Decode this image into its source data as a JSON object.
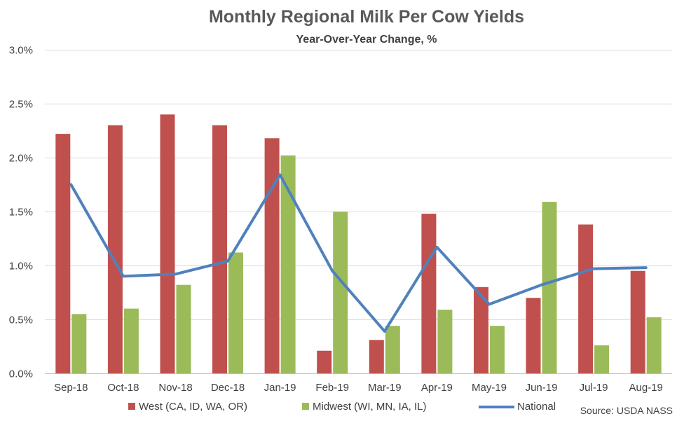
{
  "chart_data": {
    "type": "bar",
    "title": "Monthly Regional Milk Per Cow Yields",
    "subtitle": "Year-Over-Year Change, %",
    "categories": [
      "Sep-18",
      "Oct-18",
      "Nov-18",
      "Dec-18",
      "Jan-19",
      "Feb-19",
      "Mar-19",
      "Apr-19",
      "May-19",
      "Jun-19",
      "Jul-19",
      "Aug-19"
    ],
    "yticks": [
      "0.0%",
      "0.5%",
      "1.0%",
      "1.5%",
      "2.0%",
      "2.5%",
      "3.0%"
    ],
    "ylim": [
      0,
      3.0
    ],
    "grid": true,
    "legend_position": "bottom",
    "series": [
      {
        "name": "West (CA, ID, WA, OR)",
        "type": "bar",
        "color": "#C0504D",
        "values": [
          2.22,
          2.3,
          2.4,
          2.3,
          2.18,
          0.21,
          0.31,
          1.48,
          0.8,
          0.7,
          1.38,
          0.95
        ]
      },
      {
        "name": "Midwest (WI, MN, IA, IL)",
        "type": "bar",
        "color": "#9BBB59",
        "values": [
          0.55,
          0.6,
          0.82,
          1.12,
          2.02,
          1.5,
          0.44,
          0.59,
          0.44,
          1.59,
          0.26,
          0.52
        ]
      },
      {
        "name": "National",
        "type": "line",
        "color": "#4F81BD",
        "values": [
          1.75,
          0.9,
          0.92,
          1.04,
          1.84,
          0.95,
          0.39,
          1.17,
          0.64,
          0.82,
          0.97,
          0.98
        ]
      }
    ],
    "source": "Source: USDA NASS"
  }
}
